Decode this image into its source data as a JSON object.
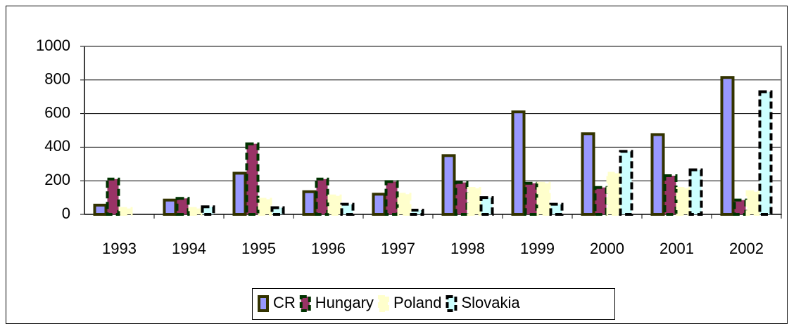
{
  "chart_data": {
    "type": "bar",
    "categories": [
      "1993",
      "1994",
      "1995",
      "1996",
      "1997",
      "1998",
      "1999",
      "2000",
      "2001",
      "2002"
    ],
    "series": [
      {
        "name": "CR",
        "color": "#9999ff",
        "edgecolor": "#333300",
        "dashed": false,
        "values": [
          55,
          85,
          245,
          135,
          120,
          350,
          610,
          480,
          475,
          815
        ]
      },
      {
        "name": "Hungary",
        "color": "#993366",
        "edgecolor": "#003300",
        "dashed": true,
        "values": [
          210,
          95,
          420,
          210,
          195,
          190,
          185,
          160,
          230,
          85
        ]
      },
      {
        "name": "Poland",
        "color": "#ffffcc",
        "edgecolor": "#ffffcc",
        "dashed": true,
        "values": [
          35,
          35,
          90,
          110,
          120,
          155,
          185,
          245,
          155,
          135
        ]
      },
      {
        "name": "Slovakia",
        "color": "#ccffff",
        "edgecolor": "#000000",
        "dashed": true,
        "values": [
          0,
          45,
          40,
          60,
          25,
          100,
          60,
          375,
          265,
          730
        ]
      }
    ],
    "ylim": [
      0,
      1000
    ],
    "yticks": [
      0,
      200,
      400,
      600,
      800,
      1000
    ],
    "grid": true,
    "legend": "bottom"
  }
}
